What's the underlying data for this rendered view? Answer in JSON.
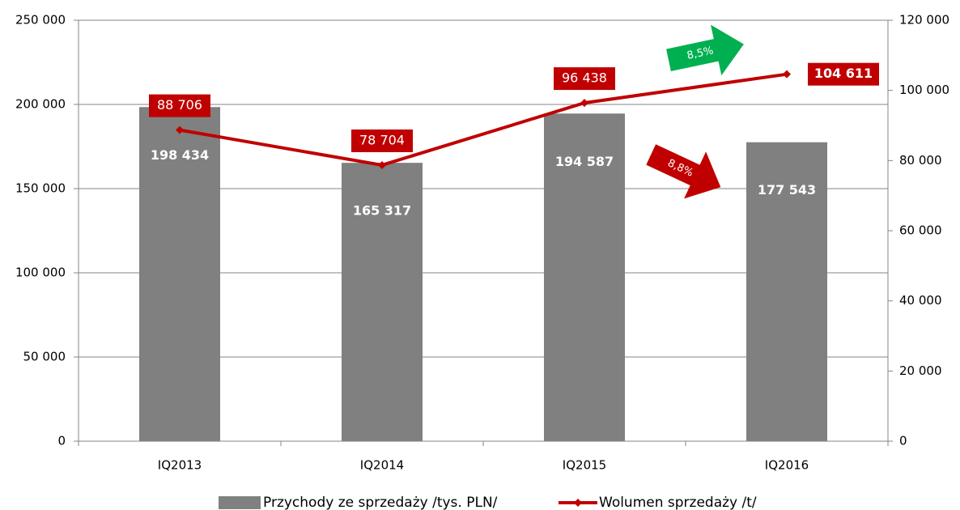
{
  "chart_data": {
    "type": "bar",
    "categories": [
      "IQ2013",
      "IQ2014",
      "IQ2015",
      "IQ2016"
    ],
    "series": [
      {
        "name": "Przychody ze sprzedaży /tys. PLN/",
        "type": "bar",
        "color": "#808080",
        "axis": "y",
        "values": [
          198434,
          165317,
          194587,
          177543
        ],
        "value_labels": [
          "198 434",
          "165 317",
          "194 587",
          "177 543"
        ]
      },
      {
        "name": "Wolumen sprzedaży /t/",
        "type": "line",
        "color": "#c00000",
        "axis": "y2",
        "values": [
          88706,
          78704,
          96438,
          104611
        ],
        "value_labels": [
          "88 706",
          "78 704",
          "96 438",
          "104 611"
        ]
      }
    ],
    "ylim": [
      0,
      250000
    ],
    "yticks": [
      0,
      {
        "value": 50000,
        "label": "50 000"
      },
      {
        "value": 100000,
        "label": "100 000"
      },
      {
        "value": 150000,
        "label": "150 000"
      },
      {
        "value": 200000,
        "label": "200 000"
      },
      {
        "value": 250000,
        "label": "250 000"
      }
    ],
    "y2lim": [
      0,
      120000
    ],
    "y2ticks": [
      0,
      {
        "value": 20000,
        "label": "20 000"
      },
      {
        "value": 40000,
        "label": "40 000"
      },
      {
        "value": 60000,
        "label": "60 000"
      },
      {
        "value": 80000,
        "label": "80 000"
      },
      {
        "value": 100000,
        "label": "100 000"
      },
      {
        "value": 120000,
        "label": "120 000"
      }
    ],
    "grid": true,
    "legend": "bottom",
    "annotations": [
      {
        "text": "8,5%",
        "color": "#00b050"
      },
      {
        "text": "8,8%",
        "color": "#c00000"
      }
    ]
  }
}
